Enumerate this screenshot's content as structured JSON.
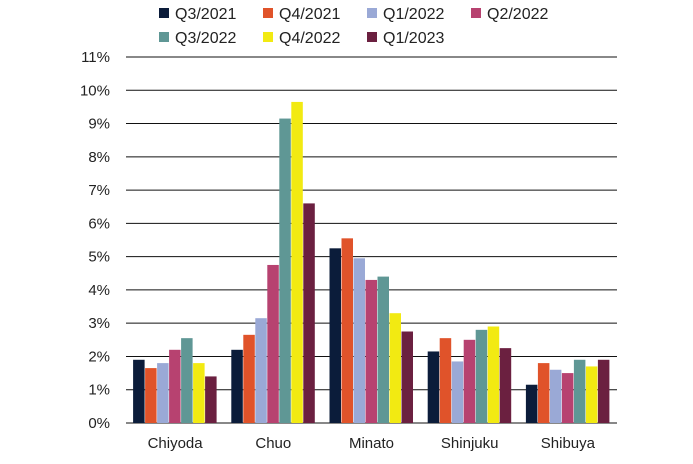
{
  "chart_data": {
    "type": "bar",
    "categories": [
      "Chiyoda",
      "Chuo",
      "Minato",
      "Shinjuku",
      "Shibuya"
    ],
    "series": [
      {
        "name": "Q3/2021",
        "color": "#0b1c3a",
        "values": [
          1.9,
          2.2,
          5.25,
          2.15,
          1.15
        ]
      },
      {
        "name": "Q4/2021",
        "color": "#e0532a",
        "values": [
          1.65,
          2.65,
          5.55,
          2.55,
          1.8
        ]
      },
      {
        "name": "Q1/2022",
        "color": "#9aa9d6",
        "values": [
          1.8,
          3.15,
          4.95,
          1.85,
          1.6
        ]
      },
      {
        "name": "Q2/2022",
        "color": "#b74270",
        "values": [
          2.2,
          4.75,
          4.3,
          2.5,
          1.5
        ]
      },
      {
        "name": "Q3/2022",
        "color": "#5f9795",
        "values": [
          2.55,
          9.15,
          4.4,
          2.8,
          1.9
        ]
      },
      {
        "name": "Q4/2022",
        "color": "#f2ea12",
        "values": [
          1.8,
          9.65,
          3.3,
          2.9,
          1.7
        ]
      },
      {
        "name": "Q1/2023",
        "color": "#6b2040",
        "values": [
          1.4,
          6.6,
          2.75,
          2.25,
          1.9
        ]
      }
    ],
    "y_ticks": [
      "0%",
      "1%",
      "2%",
      "3%",
      "4%",
      "5%",
      "6%",
      "7%",
      "8%",
      "9%",
      "10%",
      "11%"
    ],
    "ylim": [
      0,
      11
    ],
    "grid": true,
    "legend": "top"
  }
}
